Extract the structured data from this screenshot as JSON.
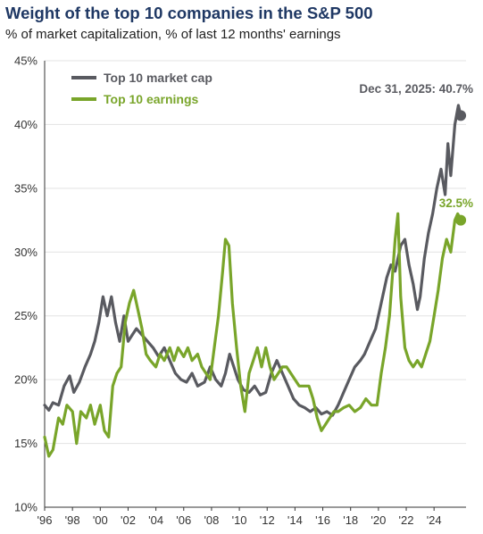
{
  "colors": {
    "market_cap": "#595a60",
    "earnings": "#79a52a",
    "grid": "#e3e3e3",
    "axis": "#333333"
  },
  "chart_data": {
    "type": "line",
    "title": "Weight of the top 10 companies in the S&P 500",
    "subtitle": "% of market capitalization, % of last 12 months' earnings",
    "xlim": [
      1996,
      2026.3
    ],
    "ylim": [
      10,
      45
    ],
    "grid": "horizontal",
    "legend_position": "top-left",
    "x_ticks": [
      1996,
      1998,
      2000,
      2002,
      2004,
      2006,
      2008,
      2010,
      2012,
      2014,
      2016,
      2018,
      2020,
      2022,
      2024
    ],
    "x_tick_labels": [
      "'96",
      "'98",
      "'00",
      "'02",
      "'04",
      "'06",
      "'08",
      "'10",
      "'12",
      "'14",
      "'16",
      "'18",
      "'20",
      "'22",
      "'24"
    ],
    "y_ticks": [
      10,
      15,
      20,
      25,
      30,
      35,
      40,
      45
    ],
    "y_tick_labels": [
      "10%",
      "15%",
      "20%",
      "25%",
      "30%",
      "35%",
      "40%",
      "45%"
    ],
    "series": [
      {
        "name": "Top 10 market cap",
        "color": "#595a60",
        "points": [
          [
            1996.0,
            18.0
          ],
          [
            1996.3,
            17.6
          ],
          [
            1996.6,
            18.2
          ],
          [
            1997.0,
            18.0
          ],
          [
            1997.4,
            19.5
          ],
          [
            1997.8,
            20.3
          ],
          [
            1998.1,
            19.0
          ],
          [
            1998.5,
            19.8
          ],
          [
            1998.9,
            21.0
          ],
          [
            1999.3,
            22.0
          ],
          [
            1999.6,
            23.0
          ],
          [
            1999.9,
            24.5
          ],
          [
            2000.2,
            26.5
          ],
          [
            2000.5,
            25.0
          ],
          [
            2000.8,
            26.5
          ],
          [
            2001.1,
            24.5
          ],
          [
            2001.4,
            23.0
          ],
          [
            2001.7,
            25.0
          ],
          [
            2002.0,
            23.0
          ],
          [
            2002.3,
            23.5
          ],
          [
            2002.6,
            24.0
          ],
          [
            2003.0,
            23.5
          ],
          [
            2003.4,
            23.0
          ],
          [
            2003.8,
            22.5
          ],
          [
            2004.2,
            21.8
          ],
          [
            2004.6,
            22.5
          ],
          [
            2005.0,
            21.5
          ],
          [
            2005.4,
            20.5
          ],
          [
            2005.8,
            20.0
          ],
          [
            2006.2,
            19.8
          ],
          [
            2006.6,
            20.5
          ],
          [
            2007.0,
            19.5
          ],
          [
            2007.5,
            19.8
          ],
          [
            2007.9,
            21.0
          ],
          [
            2008.3,
            20.0
          ],
          [
            2008.7,
            19.5
          ],
          [
            2009.0,
            20.5
          ],
          [
            2009.3,
            22.0
          ],
          [
            2009.6,
            21.0
          ],
          [
            2009.9,
            20.0
          ],
          [
            2010.3,
            19.2
          ],
          [
            2010.7,
            19.0
          ],
          [
            2011.1,
            19.5
          ],
          [
            2011.5,
            18.8
          ],
          [
            2011.9,
            19.0
          ],
          [
            2012.3,
            20.5
          ],
          [
            2012.7,
            21.5
          ],
          [
            2013.1,
            20.5
          ],
          [
            2013.5,
            19.5
          ],
          [
            2013.9,
            18.5
          ],
          [
            2014.3,
            18.0
          ],
          [
            2014.7,
            17.8
          ],
          [
            2015.1,
            17.5
          ],
          [
            2015.5,
            17.8
          ],
          [
            2015.9,
            17.3
          ],
          [
            2016.3,
            17.5
          ],
          [
            2016.7,
            17.2
          ],
          [
            2017.1,
            18.0
          ],
          [
            2017.5,
            19.0
          ],
          [
            2017.9,
            20.0
          ],
          [
            2018.3,
            21.0
          ],
          [
            2018.7,
            21.5
          ],
          [
            2019.0,
            22.0
          ],
          [
            2019.4,
            23.0
          ],
          [
            2019.8,
            24.0
          ],
          [
            2020.2,
            26.0
          ],
          [
            2020.6,
            28.0
          ],
          [
            2020.9,
            29.0
          ],
          [
            2021.2,
            28.5
          ],
          [
            2021.6,
            30.5
          ],
          [
            2021.9,
            31.0
          ],
          [
            2022.2,
            29.0
          ],
          [
            2022.5,
            27.5
          ],
          [
            2022.8,
            25.5
          ],
          [
            2023.0,
            26.5
          ],
          [
            2023.3,
            29.5
          ],
          [
            2023.6,
            31.5
          ],
          [
            2023.9,
            33.0
          ],
          [
            2024.2,
            35.0
          ],
          [
            2024.5,
            36.5
          ],
          [
            2024.8,
            34.5
          ],
          [
            2025.0,
            38.5
          ],
          [
            2025.2,
            36.0
          ],
          [
            2025.5,
            40.0
          ],
          [
            2025.75,
            41.5
          ],
          [
            2025.92,
            40.7
          ]
        ],
        "end_label": "Dec 31, 2025: 40.7%",
        "end_value": 40.7
      },
      {
        "name": "Top 10 earnings",
        "color": "#79a52a",
        "points": [
          [
            1996.0,
            15.5
          ],
          [
            1996.3,
            14.0
          ],
          [
            1996.6,
            14.5
          ],
          [
            1997.0,
            17.0
          ],
          [
            1997.3,
            16.5
          ],
          [
            1997.6,
            18.0
          ],
          [
            1998.0,
            17.5
          ],
          [
            1998.3,
            15.0
          ],
          [
            1998.6,
            17.5
          ],
          [
            1999.0,
            17.0
          ],
          [
            1999.3,
            18.0
          ],
          [
            1999.6,
            16.5
          ],
          [
            2000.0,
            18.0
          ],
          [
            2000.3,
            16.0
          ],
          [
            2000.6,
            15.5
          ],
          [
            2000.9,
            19.5
          ],
          [
            2001.2,
            20.5
          ],
          [
            2001.5,
            21.0
          ],
          [
            2001.8,
            24.5
          ],
          [
            2002.1,
            26.0
          ],
          [
            2002.4,
            27.0
          ],
          [
            2002.7,
            25.5
          ],
          [
            2003.0,
            24.0
          ],
          [
            2003.3,
            22.0
          ],
          [
            2003.6,
            21.5
          ],
          [
            2004.0,
            21.0
          ],
          [
            2004.3,
            22.0
          ],
          [
            2004.6,
            21.5
          ],
          [
            2005.0,
            22.5
          ],
          [
            2005.3,
            21.5
          ],
          [
            2005.6,
            22.5
          ],
          [
            2006.0,
            21.8
          ],
          [
            2006.3,
            22.5
          ],
          [
            2006.6,
            21.5
          ],
          [
            2007.0,
            22.0
          ],
          [
            2007.3,
            21.0
          ],
          [
            2007.6,
            20.5
          ],
          [
            2007.9,
            20.0
          ],
          [
            2008.2,
            22.5
          ],
          [
            2008.5,
            25.0
          ],
          [
            2008.8,
            28.5
          ],
          [
            2009.0,
            31.0
          ],
          [
            2009.25,
            30.5
          ],
          [
            2009.5,
            26.0
          ],
          [
            2009.8,
            22.5
          ],
          [
            2010.1,
            19.5
          ],
          [
            2010.4,
            17.5
          ],
          [
            2010.7,
            20.5
          ],
          [
            2011.0,
            21.5
          ],
          [
            2011.3,
            22.5
          ],
          [
            2011.6,
            21.0
          ],
          [
            2011.9,
            22.5
          ],
          [
            2012.2,
            21.0
          ],
          [
            2012.5,
            20.0
          ],
          [
            2012.8,
            20.5
          ],
          [
            2013.1,
            21.0
          ],
          [
            2013.4,
            21.0
          ],
          [
            2013.7,
            20.5
          ],
          [
            2014.0,
            20.0
          ],
          [
            2014.3,
            19.5
          ],
          [
            2014.6,
            19.5
          ],
          [
            2015.0,
            19.5
          ],
          [
            2015.3,
            18.5
          ],
          [
            2015.6,
            17.0
          ],
          [
            2015.9,
            16.0
          ],
          [
            2016.2,
            16.5
          ],
          [
            2016.5,
            17.0
          ],
          [
            2016.8,
            17.5
          ],
          [
            2017.1,
            17.5
          ],
          [
            2017.5,
            17.8
          ],
          [
            2017.9,
            18.0
          ],
          [
            2018.3,
            17.5
          ],
          [
            2018.7,
            17.8
          ],
          [
            2019.1,
            18.5
          ],
          [
            2019.5,
            18.0
          ],
          [
            2019.9,
            18.0
          ],
          [
            2020.2,
            20.5
          ],
          [
            2020.5,
            22.5
          ],
          [
            2020.8,
            25.0
          ],
          [
            2021.0,
            28.0
          ],
          [
            2021.2,
            31.0
          ],
          [
            2021.4,
            33.0
          ],
          [
            2021.6,
            26.5
          ],
          [
            2021.9,
            22.5
          ],
          [
            2022.2,
            21.5
          ],
          [
            2022.5,
            21.0
          ],
          [
            2022.8,
            21.5
          ],
          [
            2023.1,
            21.0
          ],
          [
            2023.4,
            22.0
          ],
          [
            2023.7,
            23.0
          ],
          [
            2024.0,
            25.0
          ],
          [
            2024.3,
            27.0
          ],
          [
            2024.6,
            29.5
          ],
          [
            2024.9,
            31.0
          ],
          [
            2025.2,
            30.0
          ],
          [
            2025.5,
            32.5
          ],
          [
            2025.7,
            33.0
          ],
          [
            2025.92,
            32.5
          ]
        ],
        "end_label": "32.5%",
        "end_value": 32.5
      }
    ]
  }
}
